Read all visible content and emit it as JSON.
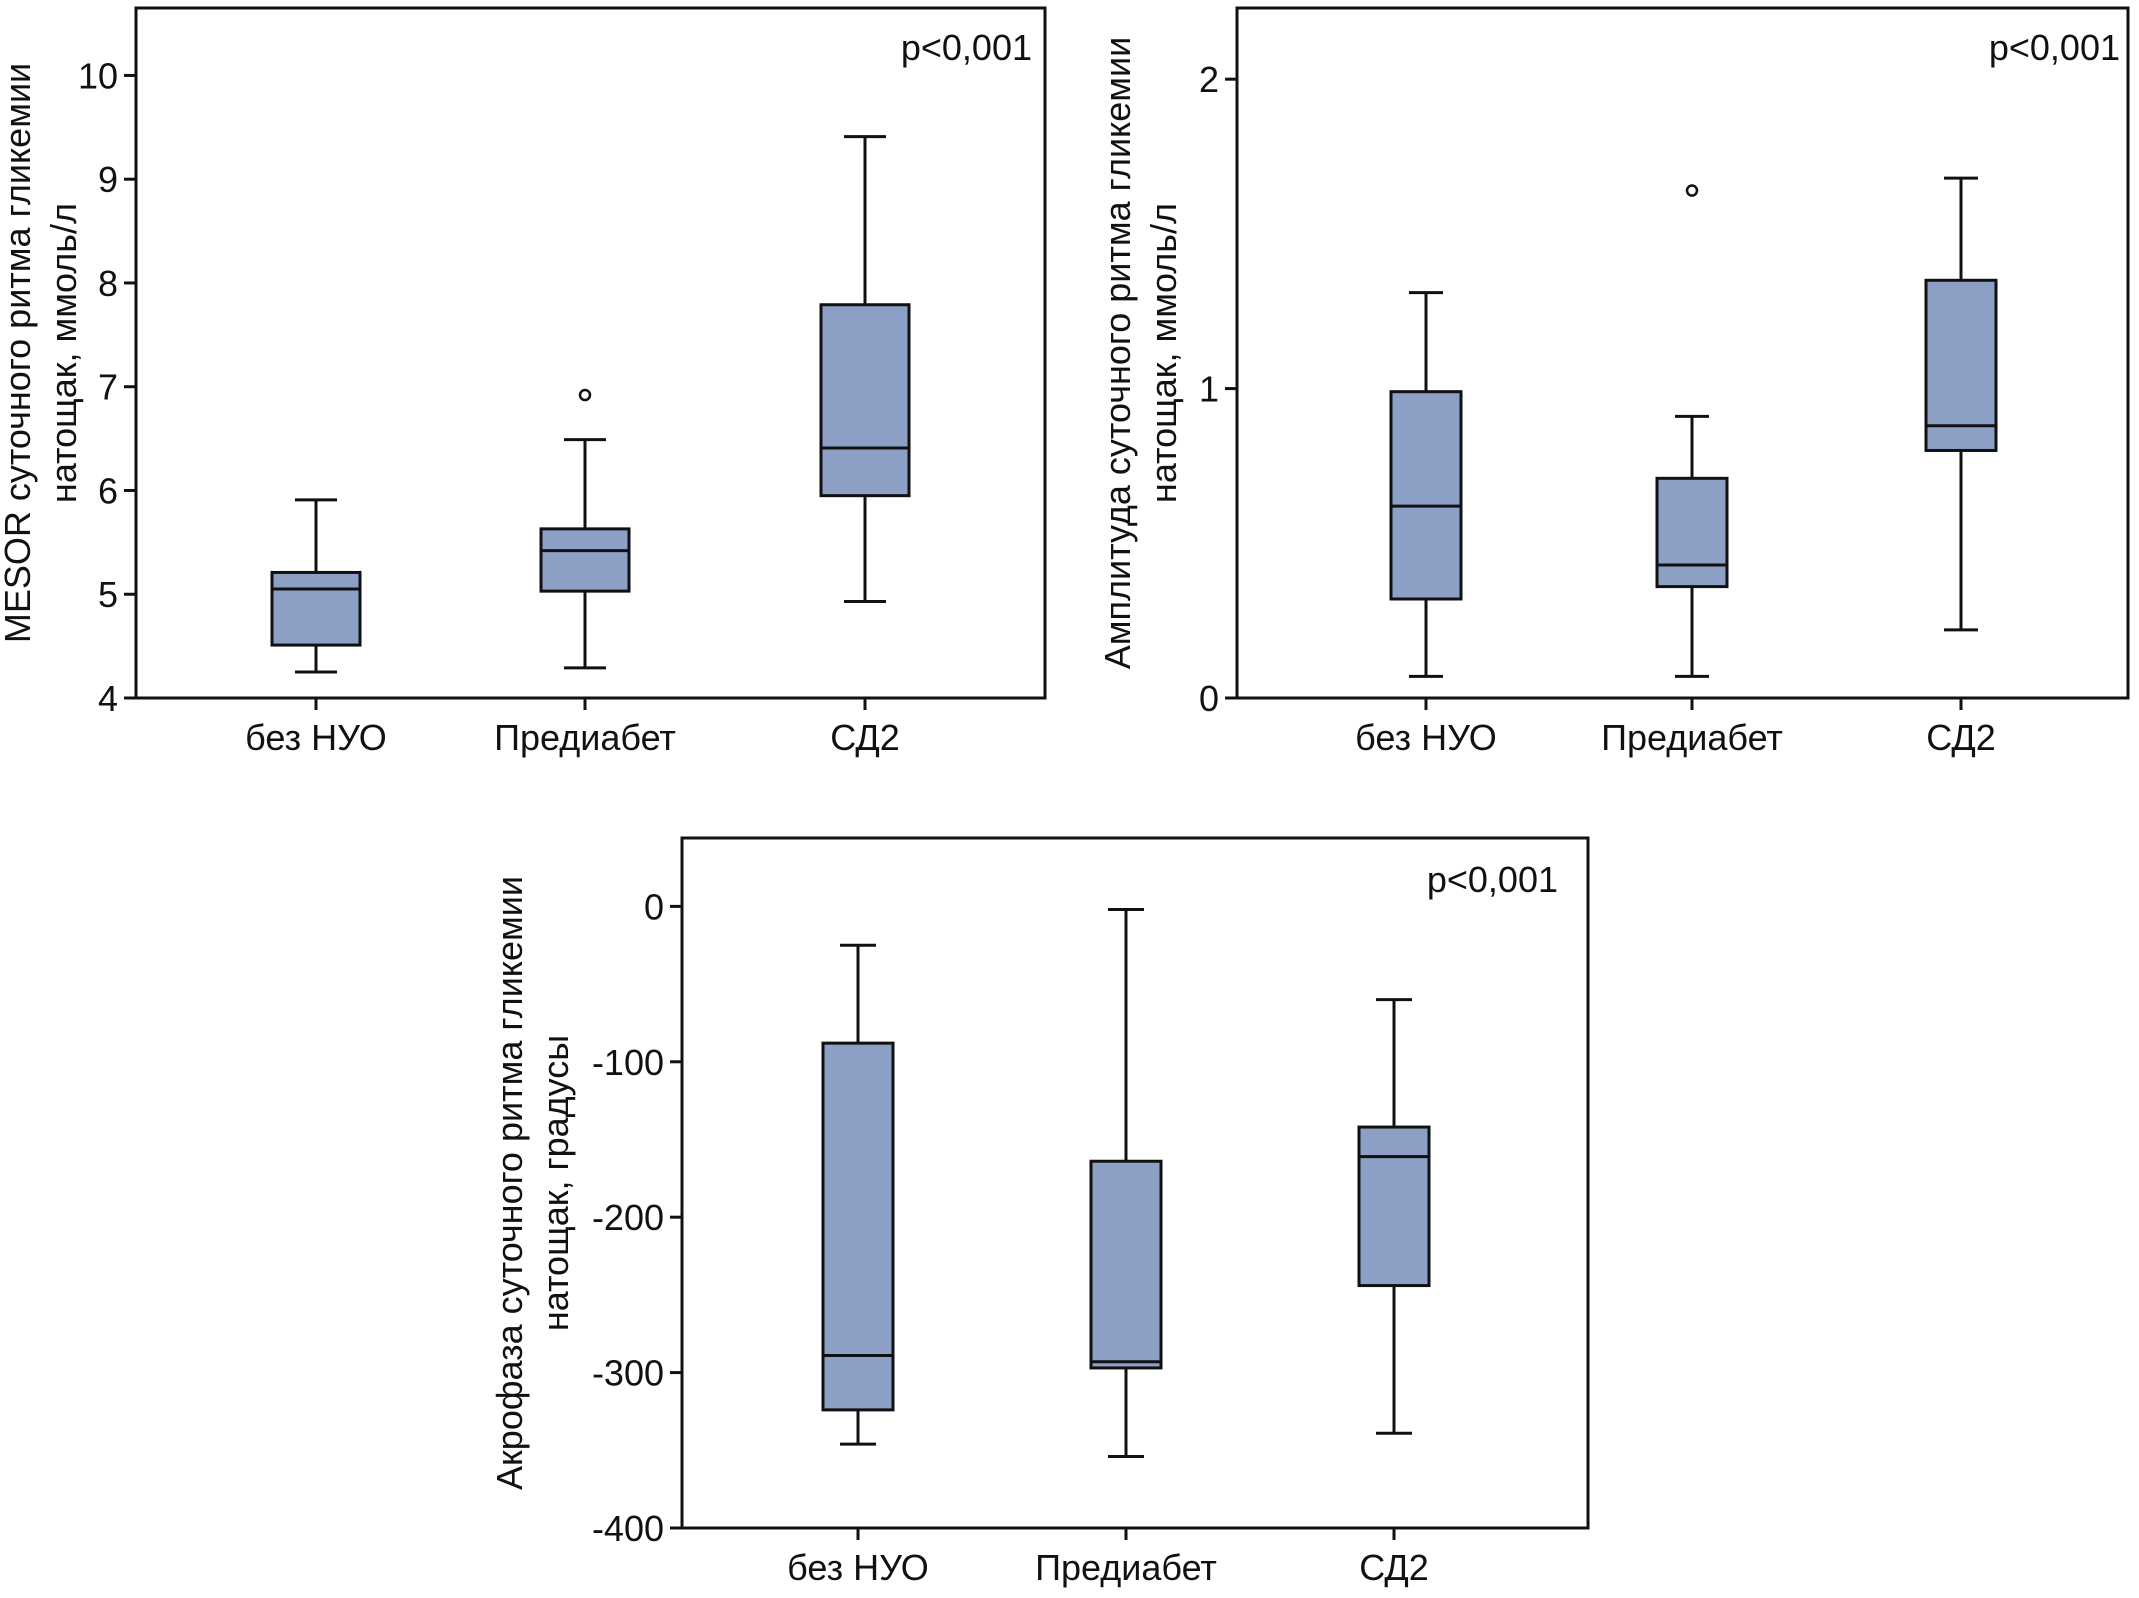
{
  "chart_data": [
    {
      "type": "box",
      "title": "",
      "annotation": "p<0,001",
      "xlabel": "",
      "ylabel_lines": [
        "MESOR суточного ритма гликемии",
        "натощак, ммоль/л"
      ],
      "categories": [
        "без НУО",
        "Предиабет",
        "СД2"
      ],
      "ylim": [
        4,
        10.65
      ],
      "yticks": [
        4,
        5,
        6,
        7,
        8,
        9,
        10
      ],
      "ytick_labels": [
        "4",
        "5",
        "6",
        "7",
        "8",
        "9",
        "10"
      ],
      "grid": false,
      "boxes": [
        {
          "category": "без НУО",
          "whisker_low": 4.25,
          "q1": 4.51,
          "median": 5.05,
          "q3": 5.21,
          "whisker_high": 5.91,
          "outliers": []
        },
        {
          "category": "Предиабет",
          "whisker_low": 4.29,
          "q1": 5.03,
          "median": 5.42,
          "q3": 5.63,
          "whisker_high": 6.49,
          "outliers": [
            6.92
          ]
        },
        {
          "category": "СД2",
          "whisker_low": 4.93,
          "q1": 5.95,
          "median": 6.41,
          "q3": 7.79,
          "whisker_high": 9.41,
          "outliers": []
        }
      ]
    },
    {
      "type": "box",
      "title": "",
      "annotation": "p<0,001",
      "xlabel": "",
      "ylabel_lines": [
        "Амплитуда суточного ритма гликемии",
        "натощак, ммоль/л"
      ],
      "categories": [
        "без НУО",
        "Предиабет",
        "СД2"
      ],
      "ylim": [
        0,
        2.23
      ],
      "yticks": [
        0,
        1,
        2
      ],
      "ytick_labels": [
        "0",
        "1",
        "2"
      ],
      "grid": false,
      "boxes": [
        {
          "category": "без НУО",
          "whisker_low": 0.07,
          "q1": 0.32,
          "median": 0.62,
          "q3": 0.99,
          "whisker_high": 1.31,
          "outliers": []
        },
        {
          "category": "Предиабет",
          "whisker_low": 0.07,
          "q1": 0.36,
          "median": 0.43,
          "q3": 0.71,
          "whisker_high": 0.91,
          "outliers": [
            1.64
          ]
        },
        {
          "category": "СД2",
          "whisker_low": 0.22,
          "q1": 0.8,
          "median": 0.88,
          "q3": 1.35,
          "whisker_high": 1.68,
          "outliers": []
        }
      ]
    },
    {
      "type": "box",
      "title": "",
      "annotation": "p<0,001",
      "xlabel": "",
      "ylabel_lines": [
        "Акрофаза суточного ритма гликемии",
        "натощак, градусы"
      ],
      "categories": [
        "без НУО",
        "Предиабет",
        "СД2"
      ],
      "ylim": [
        -400,
        44
      ],
      "yticks": [
        0,
        -100,
        -200,
        -300,
        -400
      ],
      "ytick_labels": [
        "0",
        "-100",
        "-200",
        "-300",
        "-400"
      ],
      "grid": false,
      "boxes": [
        {
          "category": "без НУО",
          "whisker_low": -346,
          "q1": -324,
          "median": -289,
          "q3": -88,
          "whisker_high": -25,
          "outliers": []
        },
        {
          "category": "Предиабет",
          "whisker_low": -354,
          "q1": -297,
          "median": -293,
          "q3": -164,
          "whisker_high": -2,
          "outliers": []
        },
        {
          "category": "СД2",
          "whisker_low": -339,
          "q1": -244,
          "median": -161,
          "q3": -142,
          "whisker_high": -60,
          "outliers": []
        }
      ]
    }
  ],
  "colors": {
    "box_fill": "#8ca0c6",
    "stroke": "#111111",
    "background": "#ffffff"
  }
}
